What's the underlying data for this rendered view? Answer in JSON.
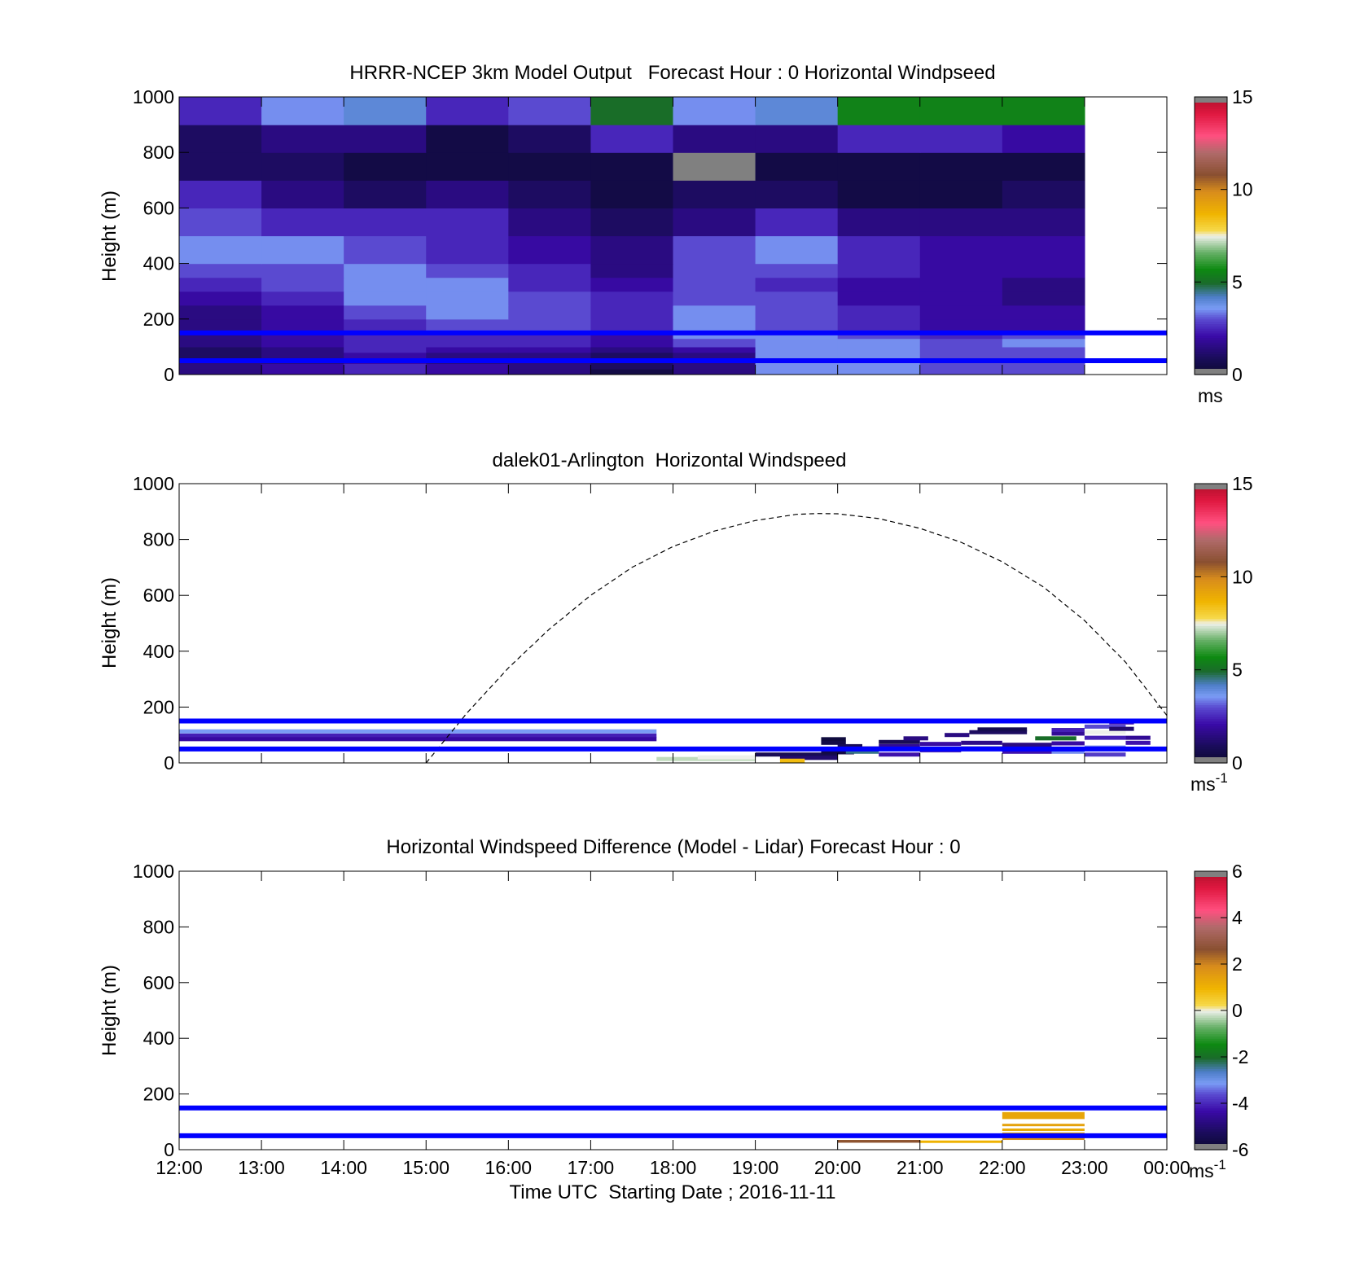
{
  "chart_data": [
    {
      "type": "heatmap",
      "title": "HRRR-NCEP 3km Model Output   Forecast Hour : 0 Horizontal Windpseed",
      "ylabel": "Height (m)",
      "ylim": [
        0,
        1000
      ],
      "xlim": [
        12,
        24
      ],
      "y_ticks": [
        "0",
        "200",
        "400",
        "600",
        "800",
        "1000"
      ],
      "colorbar": {
        "ticks": [
          "0",
          "5",
          "10",
          "15"
        ],
        "unit": "ms",
        "unit_sup": "",
        "range": [
          0,
          15
        ]
      },
      "x_start_hours": [
        12,
        13,
        14,
        15,
        16,
        17,
        18,
        19,
        20,
        21,
        22
      ],
      "cell_width_hours": 1,
      "level_bounds_m": [
        0,
        20,
        40,
        60,
        80,
        100,
        130,
        160,
        200,
        250,
        300,
        350,
        400,
        500,
        600,
        700,
        800,
        900,
        1000
      ],
      "speed_ms_by_level": [
        [
          1.5,
          2.0,
          2.5,
          2.0,
          1.5,
          0.5,
          1.5,
          3.5,
          3.5,
          3.0,
          3.0
        ],
        [
          1.5,
          2.0,
          2.5,
          2.0,
          1.5,
          1.0,
          1.5,
          3.5,
          3.5,
          3.0,
          3.0
        ],
        [
          1.5,
          1.5,
          2.0,
          1.5,
          1.5,
          1.0,
          1.5,
          3.5,
          3.5,
          3.0,
          3.0
        ],
        [
          1.0,
          1.5,
          2.0,
          1.5,
          1.5,
          1.0,
          1.5,
          3.5,
          3.5,
          3.0,
          3.0
        ],
        [
          1.0,
          1.5,
          2.5,
          2.0,
          2.0,
          1.5,
          2.0,
          3.5,
          3.5,
          3.0,
          3.0
        ],
        [
          1.5,
          2.0,
          2.5,
          2.5,
          2.5,
          2.0,
          3.0,
          3.5,
          3.5,
          3.0,
          3.5
        ],
        [
          1.5,
          2.0,
          2.5,
          2.5,
          2.5,
          2.0,
          3.5,
          3.5,
          3.0,
          2.5,
          3.0
        ],
        [
          1.5,
          2.0,
          2.5,
          3.0,
          3.0,
          2.5,
          3.5,
          3.0,
          2.5,
          2.0,
          2.0
        ],
        [
          1.5,
          2.0,
          3.0,
          3.5,
          3.0,
          2.5,
          3.5,
          3.0,
          2.5,
          2.0,
          2.0
        ],
        [
          2.0,
          2.5,
          3.5,
          3.5,
          3.0,
          2.5,
          3.0,
          3.0,
          2.0,
          2.0,
          1.5
        ],
        [
          2.5,
          3.0,
          3.5,
          3.5,
          2.5,
          2.0,
          3.0,
          2.5,
          2.0,
          2.0,
          1.5
        ],
        [
          3.0,
          3.0,
          3.5,
          3.0,
          2.5,
          1.5,
          3.0,
          3.0,
          2.5,
          2.0,
          2.0
        ],
        [
          3.5,
          3.5,
          3.0,
          2.5,
          2.0,
          1.5,
          3.0,
          3.5,
          2.5,
          2.0,
          2.0
        ],
        [
          3.0,
          2.5,
          2.5,
          2.5,
          1.5,
          1.0,
          1.5,
          2.5,
          1.5,
          1.5,
          1.5
        ],
        [
          2.5,
          1.5,
          1.0,
          1.5,
          1.0,
          0.5,
          1.0,
          1.0,
          0.5,
          0.5,
          1.0
        ],
        [
          1.0,
          1.0,
          0.5,
          0.5,
          0.5,
          0.5,
          -1,
          0.5,
          0.5,
          0.5,
          0.5
        ],
        [
          1.0,
          1.5,
          1.5,
          0.5,
          1.0,
          2.5,
          1.5,
          1.5,
          2.5,
          2.5,
          2.0
        ],
        [
          2.5,
          3.5,
          4.0,
          2.5,
          3.0,
          5.0,
          3.5,
          4.0,
          5.5,
          5.5,
          5.5
        ]
      ],
      "lines_m": [
        50,
        150
      ]
    },
    {
      "type": "heatmap",
      "title": "dalek01-Arlington  Horizontal Windspeed",
      "ylabel": "Height (m)",
      "ylim": [
        0,
        1000
      ],
      "xlim": [
        12,
        24
      ],
      "y_ticks": [
        "0",
        "200",
        "400",
        "600",
        "800",
        "1000"
      ],
      "colorbar": {
        "ticks": [
          "0",
          "5",
          "10",
          "15"
        ],
        "unit": "ms",
        "unit_sup": "-1",
        "range": [
          0,
          15
        ]
      },
      "streaks": [
        {
          "x": [
            12,
            17.8
          ],
          "y": 113,
          "v": 3.6
        },
        {
          "x": [
            12,
            17.8
          ],
          "y": 98,
          "v": 2.4
        },
        {
          "x": [
            12,
            17.8
          ],
          "y": 85,
          "v": 2.0
        },
        {
          "x": [
            17.8,
            19
          ],
          "y": 14,
          "v": 7.2
        },
        {
          "x": [
            18.3,
            19
          ],
          "y": 20,
          "v": 7.5
        },
        {
          "x": [
            19,
            20
          ],
          "y": 30,
          "v": 0.8
        },
        {
          "x": [
            19.3,
            20
          ],
          "y": 18,
          "v": 1.2
        },
        {
          "x": [
            19.3,
            19.6
          ],
          "y": 8,
          "v": 8.5
        },
        {
          "x": [
            19.8,
            20.2
          ],
          "y": 38,
          "v": 0.5
        },
        {
          "x": [
            19.8,
            20.1
          ],
          "y": 85,
          "v": 0.3
        },
        {
          "x": [
            19.8,
            20.1
          ],
          "y": 72,
          "v": 0.5
        },
        {
          "x": [
            20,
            20.3
          ],
          "y": 60,
          "v": 0.8
        },
        {
          "x": [
            20.1,
            20.5
          ],
          "y": 52,
          "v": 1.3
        },
        {
          "x": [
            20.1,
            20.5
          ],
          "y": 40,
          "v": 4.5
        },
        {
          "x": [
            20.5,
            21
          ],
          "y": 75,
          "v": 0.8
        },
        {
          "x": [
            20.5,
            21
          ],
          "y": 60,
          "v": 1.8
        },
        {
          "x": [
            20.5,
            21
          ],
          "y": 30,
          "v": 2.2
        },
        {
          "x": [
            20.8,
            21.1
          ],
          "y": 88,
          "v": 1.5
        },
        {
          "x": [
            21,
            21.5
          ],
          "y": 68,
          "v": 2.0
        },
        {
          "x": [
            21,
            21.5
          ],
          "y": 45,
          "v": 2.5
        },
        {
          "x": [
            21.3,
            21.6
          ],
          "y": 100,
          "v": 1.5
        },
        {
          "x": [
            21.5,
            22
          ],
          "y": 72,
          "v": 1.6
        },
        {
          "x": [
            21.5,
            22
          ],
          "y": 52,
          "v": 1.0
        },
        {
          "x": [
            21.6,
            22.3
          ],
          "y": 110,
          "v": 1.0
        },
        {
          "x": [
            21.7,
            22.3
          ],
          "y": 120,
          "v": 0.7
        },
        {
          "x": [
            22,
            22.6
          ],
          "y": 40,
          "v": 2.2
        },
        {
          "x": [
            22,
            22.6
          ],
          "y": 65,
          "v": 1.5
        },
        {
          "x": [
            22.4,
            22.9
          ],
          "y": 88,
          "v": 5.0
        },
        {
          "x": [
            22.6,
            23
          ],
          "y": 105,
          "v": 1.8
        },
        {
          "x": [
            22.6,
            23
          ],
          "y": 118,
          "v": 2.4
        },
        {
          "x": [
            22.6,
            23
          ],
          "y": 70,
          "v": 2.0
        },
        {
          "x": [
            22.6,
            23
          ],
          "y": 40,
          "v": 3.5
        },
        {
          "x": [
            23,
            23.5
          ],
          "y": 130,
          "v": 3.0
        },
        {
          "x": [
            23,
            23.5
          ],
          "y": 110,
          "v": 7.5
        },
        {
          "x": [
            23,
            23.5
          ],
          "y": 90,
          "v": 2.4
        },
        {
          "x": [
            23,
            23.5
          ],
          "y": 55,
          "v": 3.4
        },
        {
          "x": [
            23,
            23.5
          ],
          "y": 30,
          "v": 2.8
        },
        {
          "x": [
            23.3,
            23.6
          ],
          "y": 145,
          "v": 2.2
        },
        {
          "x": [
            23.3,
            23.6
          ],
          "y": 122,
          "v": 1.2
        },
        {
          "x": [
            23.5,
            23.8
          ],
          "y": 90,
          "v": 1.8
        },
        {
          "x": [
            23.5,
            23.8
          ],
          "y": 72,
          "v": 2.2
        },
        {
          "x": [
            23.5,
            23.9
          ],
          "y": 50,
          "v": 1.5
        }
      ],
      "curve_m": [
        [
          15,
          0
        ],
        [
          15.5,
          180
        ],
        [
          16,
          340
        ],
        [
          16.5,
          480
        ],
        [
          17,
          600
        ],
        [
          17.5,
          700
        ],
        [
          18,
          775
        ],
        [
          18.5,
          830
        ],
        [
          19,
          868
        ],
        [
          19.5,
          890
        ],
        [
          19.75,
          893
        ],
        [
          20,
          892
        ],
        [
          20.5,
          875
        ],
        [
          21,
          840
        ],
        [
          21.5,
          790
        ],
        [
          22,
          720
        ],
        [
          22.5,
          630
        ],
        [
          23,
          510
        ],
        [
          23.5,
          360
        ],
        [
          24,
          170
        ]
      ],
      "lines_m": [
        50,
        150
      ]
    },
    {
      "type": "heatmap",
      "title": "Horizontal Windspeed Difference (Model - Lidar) Forecast Hour : 0",
      "ylabel": "Height (m)",
      "xlabel": "Time UTC  Starting Date ; 2016-11-11",
      "ylim": [
        0,
        1000
      ],
      "xlim": [
        12,
        24
      ],
      "y_ticks": [
        "0",
        "200",
        "400",
        "600",
        "800",
        "1000"
      ],
      "x_ticks": [
        "12:00",
        "13:00",
        "14:00",
        "15:00",
        "16:00",
        "17:00",
        "18:00",
        "19:00",
        "20:00",
        "21:00",
        "22:00",
        "23:00",
        "00:00"
      ],
      "colorbar": {
        "ticks": [
          "-6",
          "-4",
          "-2",
          "0",
          "2",
          "4",
          "6"
        ],
        "unit": "ms",
        "unit_sup": "-1",
        "range": [
          -6,
          6
        ]
      },
      "cells": [
        {
          "x": [
            20,
            21
          ],
          "y": [
            25,
            35
          ],
          "v": 2.6
        },
        {
          "x": [
            21,
            22
          ],
          "y": [
            25,
            33
          ],
          "v": 1.0
        },
        {
          "x": [
            22,
            23
          ],
          "y": [
            110,
            135
          ],
          "v": 1.3
        },
        {
          "x": [
            22,
            23
          ],
          "y": [
            85,
            93
          ],
          "v": 1.4
        },
        {
          "x": [
            22,
            23
          ],
          "y": [
            68,
            76
          ],
          "v": 1.2
        },
        {
          "x": [
            22,
            23
          ],
          "y": [
            50,
            62
          ],
          "v": 1.3
        },
        {
          "x": [
            22,
            23
          ],
          "y": [
            35,
            45
          ],
          "v": 1.8
        }
      ],
      "lines_m": [
        50,
        150
      ]
    }
  ],
  "colormap_stops": [
    [
      0,
      "#0a0a2e"
    ],
    [
      0.06,
      "#1a0c5a"
    ],
    [
      0.14,
      "#3a0aa8"
    ],
    [
      0.2,
      "#5a4ad0"
    ],
    [
      0.24,
      "#7a9cf5"
    ],
    [
      0.28,
      "#4e7ec8"
    ],
    [
      0.33,
      "#1a6b2a"
    ],
    [
      0.38,
      "#0e8a12"
    ],
    [
      0.44,
      "#66b066"
    ],
    [
      0.5,
      "#eef0ea"
    ],
    [
      0.52,
      "#f6d84a"
    ],
    [
      0.58,
      "#f0b400"
    ],
    [
      0.66,
      "#d88c1c"
    ],
    [
      0.72,
      "#8a5030"
    ],
    [
      0.8,
      "#b06a6a"
    ],
    [
      0.86,
      "#ff5080"
    ],
    [
      0.94,
      "#e01840"
    ],
    [
      1,
      "#b0102a"
    ]
  ],
  "overlay_line_color": "#0000ff",
  "missing_color": "#808080"
}
